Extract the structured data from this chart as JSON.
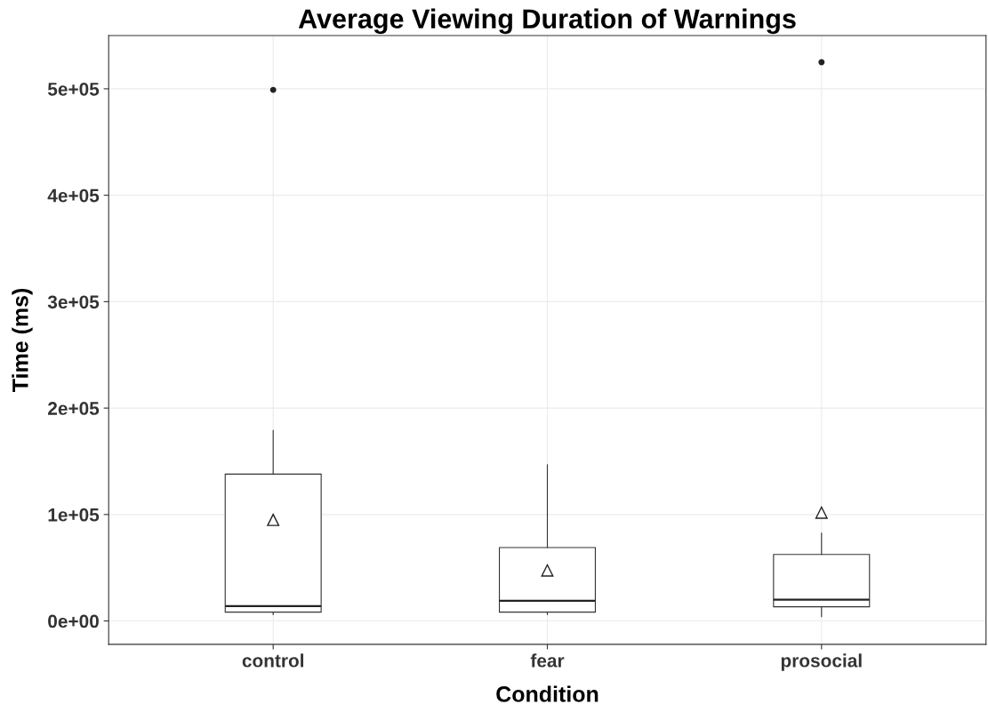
{
  "chart_data": {
    "type": "box",
    "title": "Average Viewing Duration of Warnings",
    "xlabel": "Condition",
    "ylabel": "Time (ms)",
    "categories": [
      "control",
      "fear",
      "prosocial"
    ],
    "boxes": [
      {
        "low": 6000,
        "q1": 8300,
        "median": 14000,
        "q3": 138000,
        "high": 179000,
        "mean": 95000,
        "outliers": [
          499000
        ]
      },
      {
        "low": 6000,
        "q1": 8300,
        "median": 19000,
        "q3": 69000,
        "high": 146700,
        "mean": 47500
      },
      {
        "low": 4000,
        "q1": 13300,
        "median": 20000,
        "q3": 62500,
        "high": 82500,
        "mean": 101700,
        "outliers": [
          525000
        ]
      }
    ],
    "ylim": [
      -22000,
      550000
    ],
    "yticks": [
      {
        "value": 0,
        "label": "0e+00"
      },
      {
        "value": 100000,
        "label": "1e+05"
      },
      {
        "value": 200000,
        "label": "2e+05"
      },
      {
        "value": 300000,
        "label": "3e+05"
      },
      {
        "value": 400000,
        "label": "4e+05"
      },
      {
        "value": 500000,
        "label": "5e+05"
      }
    ],
    "grid": true
  }
}
